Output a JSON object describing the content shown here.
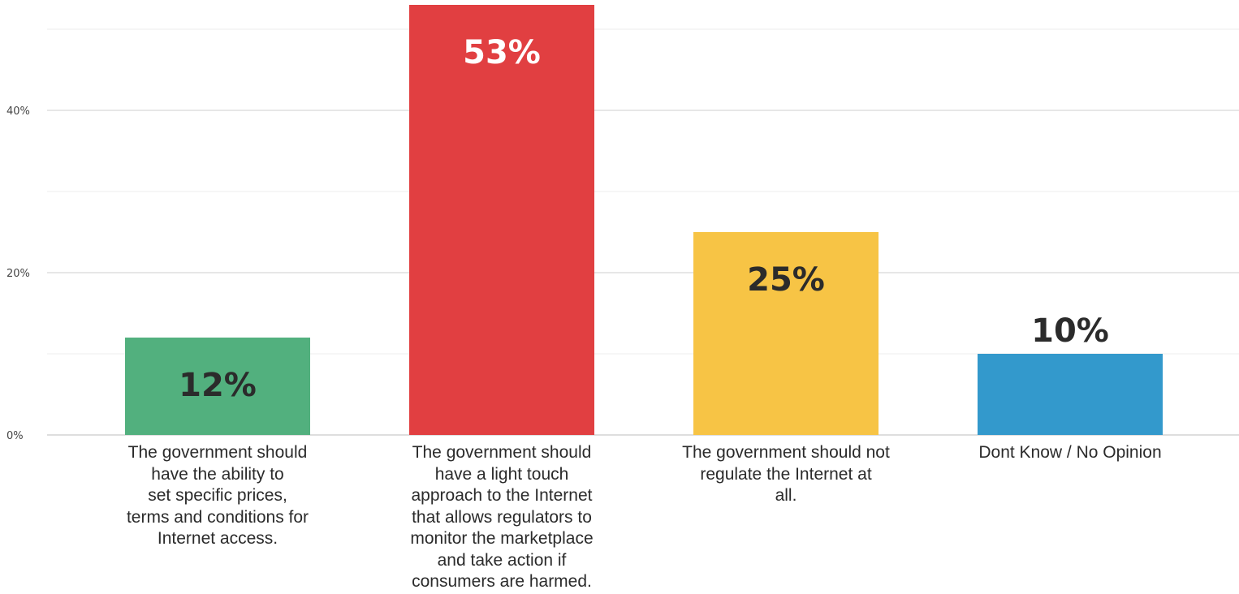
{
  "chart_data": {
    "type": "bar",
    "categories": [
      "The government should have the ability to set specific prices, terms and conditions for Internet access.",
      "The government should have a light touch approach to the Internet that allows regulators to monitor the marketplace and take action if consumers are harmed.",
      "The government should not regulate the Internet at all.",
      "Dont Know / No Opinion"
    ],
    "category_lines": [
      [
        "The government should",
        "have the ability to",
        "set specific prices,",
        "terms and conditions for",
        "Internet access."
      ],
      [
        "The government should",
        "have a light touch",
        "approach to the Internet",
        "that allows regulators to",
        "monitor the marketplace",
        "and take action if",
        "consumers are harmed."
      ],
      [
        "The government should not",
        "regulate the Internet at",
        "all."
      ],
      [
        "Dont Know / No Opinion"
      ]
    ],
    "values": [
      12,
      53,
      25,
      10
    ],
    "value_labels": [
      "12%",
      "53%",
      "25%",
      "10%"
    ],
    "colors": [
      "#52b07e",
      "#e13f41",
      "#f7c445",
      "#3399cc"
    ],
    "label_colors": [
      "#2b2b2b",
      "#ffffff",
      "#2b2b2b",
      "#2b2b2b"
    ],
    "label_position": [
      "inside",
      "inside",
      "inside",
      "above"
    ],
    "title": "",
    "xlabel": "",
    "ylabel": "",
    "ylim": [
      0,
      50
    ],
    "yticks": [
      0,
      20,
      40
    ],
    "ytick_labels": [
      "0%",
      "20%",
      "40%"
    ],
    "minor_gridlines": [
      10,
      30,
      50
    ],
    "grid": true,
    "legend": "none"
  }
}
